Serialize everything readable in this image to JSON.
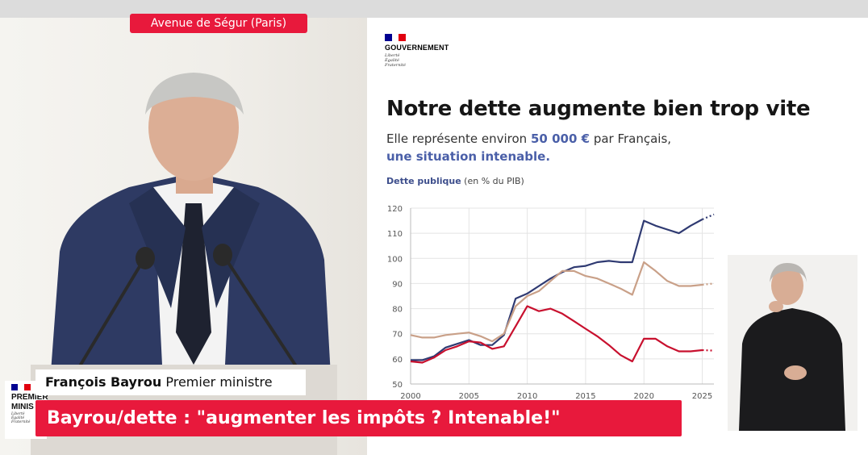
{
  "broadcast": {
    "location": "Avenue de Ségur (Paris)",
    "speaker_name": "François Bayrou",
    "speaker_role": "Premier ministre",
    "headline": "Bayrou/dette : \"augmenter les impôts ? Intenable!\""
  },
  "gov_logo": {
    "name": "GOUVERNEMENT",
    "motto": [
      "Liberté",
      "Égalité",
      "Fraternité"
    ],
    "side_name_line1": "PREMIER",
    "side_name_line2": "MINIS",
    "flag_colors": [
      "#000091",
      "#ffffff",
      "#e1000f"
    ]
  },
  "slide": {
    "title": "Notre dette augmente bien trop vite",
    "subtitle_pre": "Elle représente environ ",
    "subtitle_amount": "50 000 €",
    "subtitle_post": " par Français,",
    "subtitle_line2": "une situation intenable.",
    "chart_label_bold": "Dette publique",
    "chart_label_rest": " (en % du PIB)"
  },
  "chart_data": {
    "type": "line",
    "title": "Dette publique",
    "ylabel": "(en % du PIB)",
    "xlim": [
      2000,
      2026
    ],
    "ylim": [
      50,
      120
    ],
    "x_ticks": [
      2000,
      2005,
      2010,
      2015,
      2020,
      2025
    ],
    "y_ticks": [
      50,
      60,
      70,
      80,
      90,
      100,
      110,
      120
    ],
    "grid": true,
    "legend": "none",
    "series": [
      {
        "color": "#2f3a72",
        "x": [
          2000,
          2001,
          2002,
          2003,
          2004,
          2005,
          2006,
          2007,
          2008,
          2009,
          2010,
          2011,
          2012,
          2013,
          2014,
          2015,
          2016,
          2017,
          2018,
          2019,
          2020,
          2021,
          2022,
          2023,
          2024,
          2025
        ],
        "y": [
          59.5,
          59.5,
          61,
          64.5,
          66,
          67.5,
          65.5,
          65.5,
          69.5,
          84,
          86,
          89,
          92,
          94.5,
          96.5,
          97,
          98.5,
          99,
          98.5,
          98.5,
          115,
          113,
          111.5,
          110,
          113,
          115.5
        ],
        "projection": {
          "x": [
            2025,
            2026
          ],
          "y": [
            115.5,
            117.5
          ]
        }
      },
      {
        "color": "#c9a088",
        "x": [
          2000,
          2001,
          2002,
          2003,
          2004,
          2005,
          2006,
          2007,
          2008,
          2009,
          2010,
          2011,
          2012,
          2013,
          2014,
          2015,
          2016,
          2017,
          2018,
          2019,
          2020,
          2021,
          2022,
          2023,
          2024,
          2025
        ],
        "y": [
          69.5,
          68.5,
          68.5,
          69.5,
          70,
          70.5,
          69,
          67,
          70,
          81,
          85,
          87,
          91,
          95,
          95,
          93,
          92,
          90,
          88,
          85.5,
          98.5,
          95,
          91,
          89,
          89,
          89.5
        ],
        "projection": {
          "x": [
            2025,
            2026
          ],
          "y": [
            89.5,
            90
          ]
        }
      },
      {
        "color": "#c8102e",
        "x": [
          2000,
          2001,
          2002,
          2003,
          2004,
          2005,
          2006,
          2007,
          2008,
          2009,
          2010,
          2011,
          2012,
          2013,
          2014,
          2015,
          2016,
          2017,
          2018,
          2019,
          2020,
          2021,
          2022,
          2023,
          2024,
          2025
        ],
        "y": [
          59,
          58.5,
          60.5,
          63.5,
          65,
          67,
          66.5,
          64,
          65,
          73,
          81,
          79,
          80,
          78,
          75,
          72,
          69,
          65.5,
          61.5,
          59,
          68,
          68,
          65,
          63,
          63,
          63.5
        ],
        "projection": {
          "x": [
            2025,
            2026
          ],
          "y": [
            63.5,
            63.3
          ]
        }
      }
    ]
  }
}
